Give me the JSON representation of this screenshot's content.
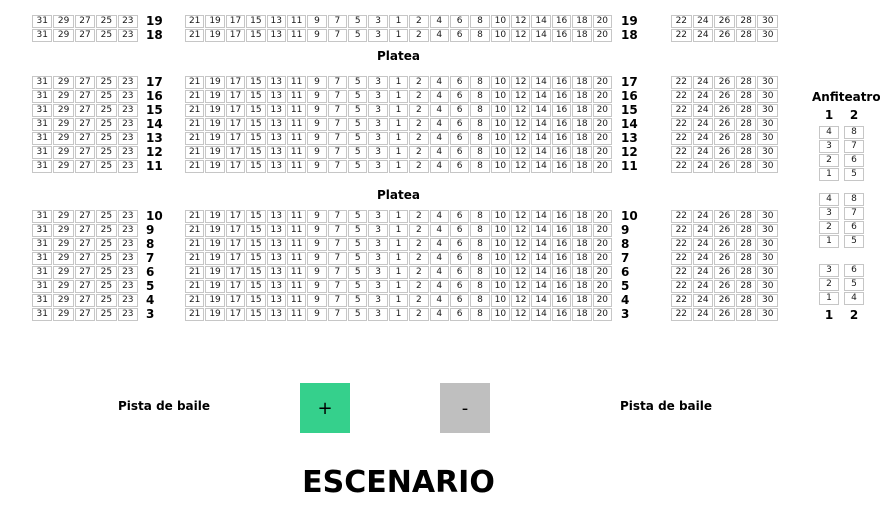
{
  "colors": {
    "accent_green": "#35d08c",
    "button_gray": "#bfbfbf",
    "seat_border": "#c6c6c6",
    "seat_text": "#1a1a1a"
  },
  "platea": {
    "label": "Platea",
    "left_seat_columns": [
      31,
      29,
      27,
      25,
      23
    ],
    "center_seat_columns": [
      21,
      19,
      17,
      15,
      13,
      11,
      9,
      7,
      5,
      3,
      1,
      2,
      4,
      6,
      8,
      10,
      12,
      14,
      16,
      18,
      20
    ],
    "right_seat_columns": [
      22,
      24,
      26,
      28,
      30
    ],
    "blocks": [
      {
        "rows": [
          19,
          18
        ]
      },
      {
        "rows": [
          17,
          16,
          15,
          14,
          13,
          12,
          11
        ]
      },
      {
        "rows": [
          10,
          9,
          8,
          7,
          6,
          5,
          4,
          3
        ]
      }
    ]
  },
  "anfiteatro": {
    "label": "Anfiteatro",
    "column_headers": [
      "1",
      "2"
    ],
    "column_footers": [
      "1",
      "2"
    ],
    "blocks": [
      {
        "col1": [
          4,
          3,
          2,
          1
        ],
        "col2": [
          8,
          7,
          6,
          5
        ]
      },
      {
        "col1": [
          4,
          3,
          2,
          1
        ],
        "col2": [
          8,
          7,
          6,
          5
        ]
      },
      {
        "col1": [
          3,
          2,
          1
        ],
        "col2": [
          6,
          5,
          4
        ]
      }
    ]
  },
  "dance_floor": {
    "left_label": "Pista de baile",
    "right_label": "Pista de baile"
  },
  "zoom_controls": {
    "zoom_in": "+",
    "zoom_out": "-"
  },
  "stage": {
    "label": "ESCENARIO"
  }
}
